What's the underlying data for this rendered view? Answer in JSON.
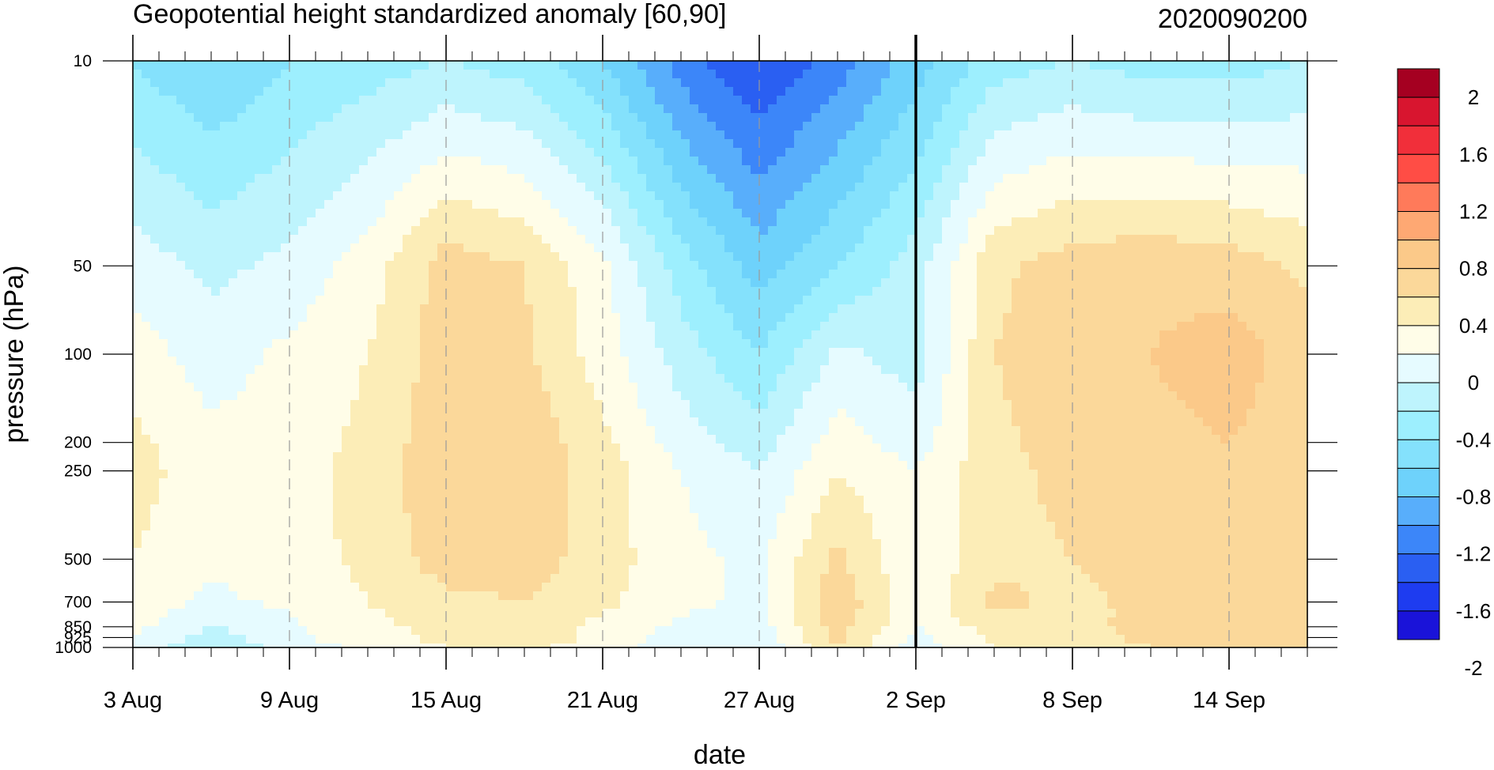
{
  "chart_data": {
    "type": "heatmap",
    "subtype": "filled-contour",
    "title": "Geopotential height standardized anomaly [60,90]",
    "subtitle_right": "2020090200",
    "xlabel": "date",
    "ylabel": "pressure (hPa)",
    "x_ticks": [
      "3 Aug",
      "9 Aug",
      "15 Aug",
      "21 Aug",
      "27 Aug",
      "2 Sep",
      "8 Sep",
      "14 Sep"
    ],
    "x_tick_days": [
      0,
      6,
      12,
      18,
      24,
      30,
      36,
      42
    ],
    "x_range_days": [
      0,
      45
    ],
    "y_ticks": [
      "10",
      "50",
      "100",
      "200",
      "250",
      "500",
      "700",
      "850",
      "925",
      "1000"
    ],
    "y_levels": [
      10,
      50,
      100,
      200,
      250,
      500,
      700,
      850,
      925,
      1000
    ],
    "y_scale": "log",
    "y_reversed": true,
    "forecast_start_marker": "2 Sep",
    "grid": "dashed vertical lines at labeled dates",
    "colorbar": {
      "labels": [
        "2",
        "1.6",
        "1.2",
        "0.8",
        "0.4",
        "0",
        "-0.4",
        "-0.8",
        "-1.2",
        "-1.6",
        "-2"
      ],
      "levels": [
        -2,
        -1.8,
        -1.6,
        -1.4,
        -1.2,
        -1,
        -0.8,
        -0.6,
        -0.4,
        -0.2,
        0,
        0.2,
        0.4,
        0.6,
        0.8,
        1,
        1.2,
        1.4,
        1.6,
        1.8,
        2
      ],
      "colors_top_to_bottom": [
        "#a50021",
        "#d8152f",
        "#f12f3a",
        "#ff4d45",
        "#ff7a5a",
        "#fea873",
        "#fbc989",
        "#fbd89a",
        "#fcedb7",
        "#fffde8",
        "#e6fbff",
        "#bef4fd",
        "#9deffe",
        "#84e1fc",
        "#6ed2fb",
        "#58aefb",
        "#3c86f9",
        "#2a5ff2",
        "#1e3cf0",
        "#1a13d9"
      ]
    },
    "field": {
      "note": "Standardized anomaly on a coarse date (x, days since 3 Aug) × pressure grid; rows follow y_levels.",
      "x_days": [
        0,
        3,
        6,
        9,
        12,
        15,
        18,
        21,
        24,
        27,
        30,
        33,
        36,
        39,
        42,
        45
      ],
      "values": [
        [
          -0.6,
          -0.8,
          -0.6,
          -0.5,
          -0.4,
          -0.5,
          -0.8,
          -1.3,
          -1.6,
          -1.3,
          -0.9,
          -0.5,
          -0.4,
          -0.5,
          -0.5,
          -0.4
        ],
        [
          -0.1,
          -0.25,
          -0.15,
          0.1,
          0.5,
          0.4,
          0.05,
          -0.5,
          -0.9,
          -0.6,
          -0.3,
          0.35,
          0.5,
          0.55,
          0.5,
          0.35
        ],
        [
          0.1,
          -0.1,
          0.05,
          0.2,
          0.5,
          0.45,
          0.1,
          -0.3,
          -0.6,
          -0.15,
          -0.3,
          0.4,
          0.55,
          0.6,
          0.7,
          0.5
        ],
        [
          0.25,
          0.05,
          0.1,
          0.25,
          0.55,
          0.55,
          0.25,
          -0.1,
          -0.3,
          0.1,
          -0.1,
          0.35,
          0.5,
          0.55,
          0.6,
          0.5
        ],
        [
          0.3,
          0.05,
          0.1,
          0.3,
          0.55,
          0.55,
          0.3,
          0.0,
          -0.2,
          0.2,
          0.0,
          0.35,
          0.45,
          0.55,
          0.55,
          0.5
        ],
        [
          0.2,
          0.05,
          0.1,
          0.25,
          0.5,
          0.5,
          0.3,
          0.05,
          -0.05,
          0.45,
          0.0,
          0.35,
          0.4,
          0.5,
          0.55,
          0.5
        ],
        [
          0.15,
          -0.05,
          0.05,
          0.2,
          0.35,
          0.4,
          0.25,
          0.05,
          -0.05,
          0.55,
          0.05,
          0.45,
          0.35,
          0.45,
          0.55,
          0.5
        ],
        [
          0.05,
          -0.2,
          -0.05,
          0.15,
          0.25,
          0.3,
          0.15,
          -0.05,
          -0.1,
          0.5,
          0.0,
          0.3,
          0.35,
          0.45,
          0.55,
          0.45
        ],
        [
          0.0,
          -0.3,
          -0.05,
          0.1,
          0.25,
          0.3,
          0.15,
          -0.1,
          -0.15,
          0.45,
          -0.05,
          0.25,
          0.3,
          0.45,
          0.55,
          0.45
        ],
        [
          -0.05,
          -0.4,
          -0.1,
          0.05,
          0.2,
          0.25,
          0.1,
          -0.15,
          -0.2,
          0.4,
          -0.1,
          0.2,
          0.25,
          0.4,
          0.5,
          0.45
        ]
      ]
    }
  }
}
